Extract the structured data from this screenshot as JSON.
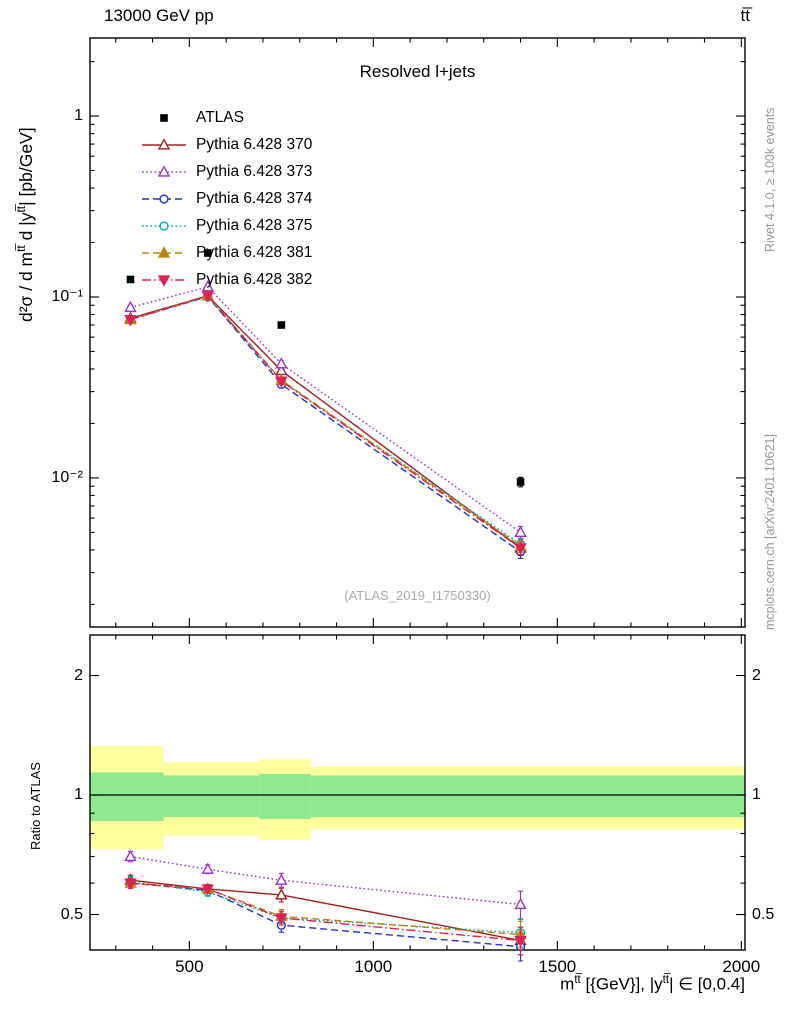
{
  "header": {
    "left": "13000 GeV pp",
    "right": "tt̅"
  },
  "panel_title": "Resolved l+jets",
  "watermark": "(ATLAS_2019_I1750330)",
  "side_notes": {
    "top": "Rivet 4.1.0, ≥ 100k events",
    "bottom": "mcplots.cern.ch [arXiv:2401.10621]"
  },
  "axes": {
    "y_label_parts": {
      "prefix": "d²σ / d m",
      "sup1": "tt̅",
      "mid": " d |y",
      "sup2": "tt̅",
      "suffix": "| [pb/GeV]"
    },
    "ratio_y_label": "Ratio to ATLAS",
    "x_label_parts": {
      "prefix": "m",
      "sup1": "tt̅",
      "mid": " [{GeV}], |y",
      "sup2": "tt̅",
      "suffix": "| ∈ [0,0.4]"
    }
  },
  "chart_data": {
    "type": "line",
    "title": "Resolved l+jets",
    "x_axis": {
      "scale": "linear",
      "min": 230,
      "max": 2010,
      "major_ticks": [
        500,
        1000,
        1500,
        2000
      ],
      "minor_step": 100,
      "tick_labels": [
        "500",
        "1000",
        "1500",
        "2000"
      ]
    },
    "top_panel": {
      "y_scale": "log",
      "y_min": 0.0015,
      "y_max": 2.7,
      "y_ticks": [
        {
          "value": 1,
          "label": "1"
        },
        {
          "value": 0.1,
          "label": "10⁻¹"
        },
        {
          "value": 0.01,
          "label": "10⁻²"
        }
      ]
    },
    "ratio_panel": {
      "y_scale": "log",
      "y_min": 0.407,
      "y_max": 2.53,
      "y_ticks": [
        {
          "value": 2,
          "label": "2"
        },
        {
          "value": 1,
          "label": "1"
        },
        {
          "value": 0.5,
          "label": "0.5"
        }
      ]
    },
    "x": [
      340,
      550,
      750,
      1400
    ],
    "reference": {
      "name": "ATLAS",
      "marker": "square",
      "fill": "solid",
      "color": "#000000",
      "values": [
        0.125,
        0.175,
        0.07,
        0.0095
      ],
      "rel_err": [
        0.02,
        0.02,
        0.035,
        0.06
      ]
    },
    "series": [
      {
        "name": "Pythia 6.428 370",
        "color": "#a02020",
        "line": "solid",
        "marker": "triangle-up",
        "fill": "open",
        "values": [
          0.0763,
          0.1015,
          0.0392,
          0.0041
        ],
        "ratio": [
          0.61,
          0.58,
          0.56,
          0.43
        ]
      },
      {
        "name": "Pythia 6.428 373",
        "color": "#9933cc",
        "line": "dotted",
        "marker": "triangle-up",
        "fill": "open",
        "values": [
          0.0875,
          0.1138,
          0.0427,
          0.005
        ],
        "ratio": [
          0.7,
          0.65,
          0.61,
          0.53
        ]
      },
      {
        "name": "Pythia 6.428 374",
        "color": "#2233bb",
        "line": "dashed",
        "marker": "circle",
        "fill": "open",
        "values": [
          0.075,
          0.1006,
          0.0329,
          0.0039
        ],
        "ratio": [
          0.6,
          0.575,
          0.47,
          0.415
        ]
      },
      {
        "name": "Pythia 6.428 375",
        "color": "#00b0a8",
        "line": "dotted",
        "marker": "circle",
        "fill": "open",
        "values": [
          0.0756,
          0.0998,
          0.0343,
          0.0043
        ],
        "ratio": [
          0.605,
          0.57,
          0.49,
          0.45
        ]
      },
      {
        "name": "Pythia 6.428 381",
        "color": "#b8860b",
        "line": "dashed",
        "marker": "triangle-up",
        "fill": "solid",
        "values": [
          0.075,
          0.1015,
          0.0347,
          0.0042
        ],
        "ratio": [
          0.6,
          0.58,
          0.495,
          0.445
        ]
      },
      {
        "name": "Pythia 6.428 382",
        "color": "#dd2255",
        "line": "dashdot",
        "marker": "triangle-down",
        "fill": "solid",
        "values": [
          0.075,
          0.1015,
          0.0343,
          0.0041
        ],
        "ratio": [
          0.6,
          0.58,
          0.49,
          0.43
        ]
      }
    ],
    "mc_rel_err": [
      0.03,
      0.025,
      0.04,
      0.08
    ],
    "bands": {
      "color_outer": "#ffff9e",
      "color_inner": "#8fe98f",
      "edges": [
        230,
        430,
        690,
        830,
        2010
      ],
      "outer": [
        [
          0.73,
          1.33
        ],
        [
          0.79,
          1.21
        ],
        [
          0.77,
          1.23
        ],
        [
          0.82,
          1.18
        ]
      ],
      "inner": [
        [
          0.86,
          1.14
        ],
        [
          0.88,
          1.12
        ],
        [
          0.87,
          1.13
        ],
        [
          0.88,
          1.12
        ]
      ]
    },
    "legend_position": "top-left"
  }
}
